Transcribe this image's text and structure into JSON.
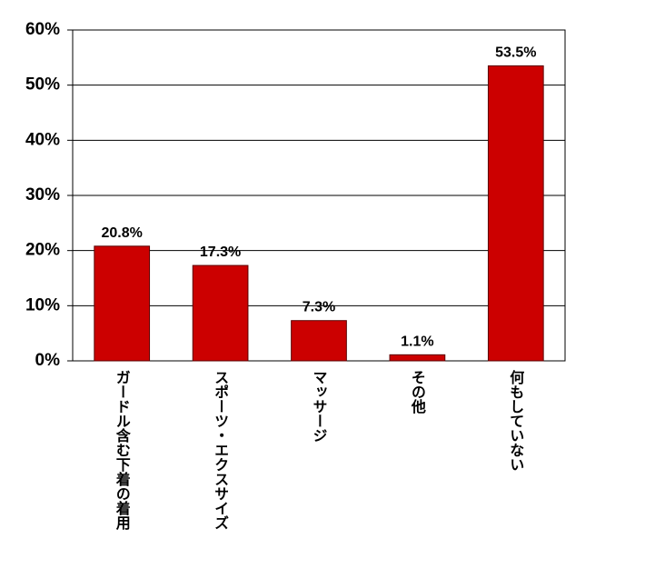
{
  "chart_data": {
    "type": "bar",
    "categories": [
      "ガードル含む下着の着用",
      "スポーツ・エクスサイズ",
      "マッサージ",
      "その他",
      "何もしていない"
    ],
    "values": [
      20.8,
      17.3,
      7.3,
      1.1,
      53.5
    ],
    "value_labels": [
      "20.8%",
      "17.3%",
      "7.3%",
      "1.1%",
      "53.5%"
    ],
    "color": "#cc0000",
    "ylim": [
      0,
      60
    ],
    "yticks": [
      {
        "value": 0,
        "label": "0%"
      },
      {
        "value": 10,
        "label": "10%"
      },
      {
        "value": 20,
        "label": "20%"
      },
      {
        "value": 30,
        "label": "30%"
      },
      {
        "value": 40,
        "label": "40%"
      },
      {
        "value": 50,
        "label": "50%"
      },
      {
        "value": 60,
        "label": "60%"
      }
    ],
    "grid": true
  }
}
